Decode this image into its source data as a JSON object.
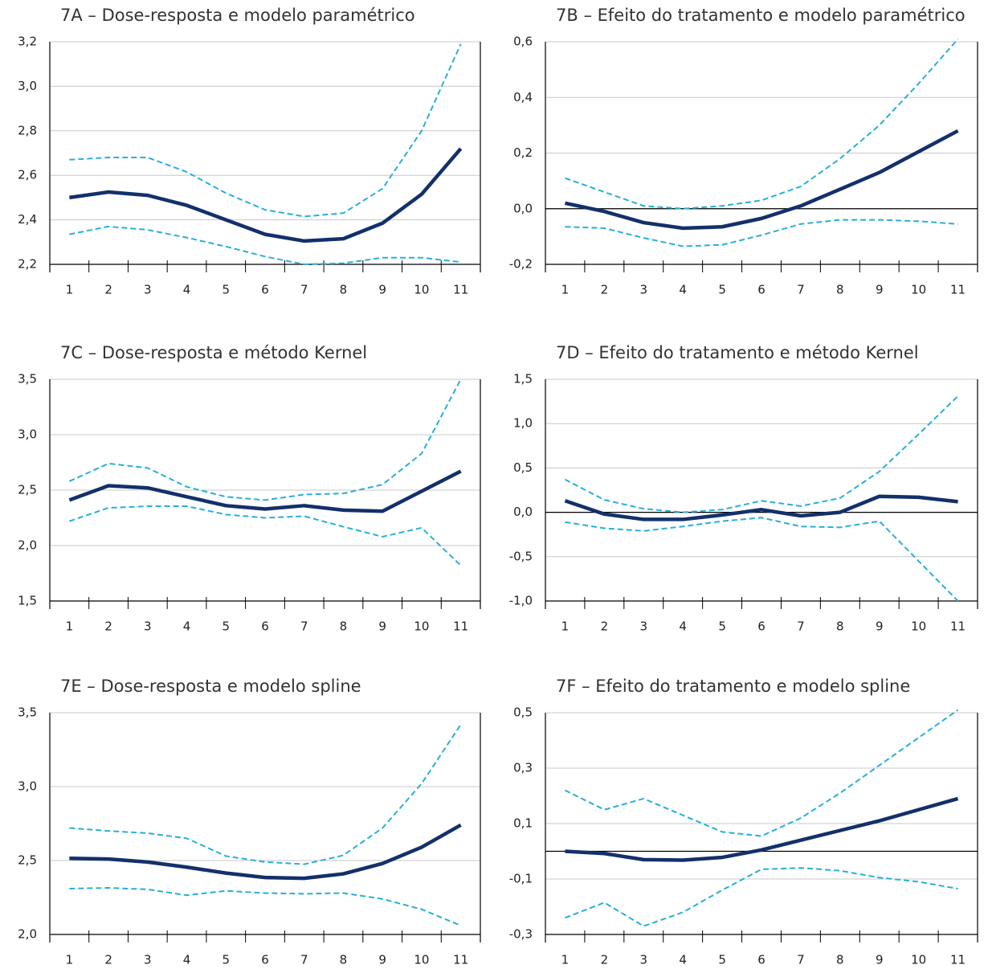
{
  "chart_data": [
    {
      "type": "line",
      "title": "7A – Dose-resposta e modelo paramétrico",
      "categories": [
        "1",
        "2",
        "3",
        "4",
        "5",
        "6",
        "7",
        "8",
        "9",
        "10",
        "11"
      ],
      "ylim": [
        2.2,
        3.2
      ],
      "yticks": [
        {
          "value": 2.2,
          "label": "2,2"
        },
        {
          "value": 2.4,
          "label": "2,4"
        },
        {
          "value": 2.6,
          "label": "2,6"
        },
        {
          "value": 2.8,
          "label": "2,8"
        },
        {
          "value": 3.0,
          "label": "3,0"
        },
        {
          "value": 3.2,
          "label": "3,2"
        }
      ],
      "grid": true,
      "zero_line": false,
      "series": [
        {
          "color": "#26b0d9",
          "style": "dashed",
          "values": [
            2.67,
            2.68,
            2.68,
            2.615,
            2.52,
            2.445,
            2.415,
            2.43,
            2.54,
            2.8,
            3.19
          ]
        },
        {
          "color": "#26b0d9",
          "style": "dashed",
          "values": [
            2.335,
            2.37,
            2.355,
            2.32,
            2.28,
            2.235,
            2.2,
            2.205,
            2.23,
            2.23,
            2.21
          ]
        },
        {
          "color": "#13306b",
          "style": "solid",
          "values": [
            2.5,
            2.525,
            2.51,
            2.465,
            2.4,
            2.335,
            2.305,
            2.315,
            2.385,
            2.515,
            2.72
          ]
        }
      ]
    },
    {
      "type": "line",
      "title": "7B – Efeito do tratamento e modelo paramétrico",
      "categories": [
        "1",
        "2",
        "3",
        "4",
        "5",
        "6",
        "7",
        "8",
        "9",
        "10",
        "11"
      ],
      "ylim": [
        -0.2,
        0.6
      ],
      "yticks": [
        {
          "value": -0.2,
          "label": "-0,2"
        },
        {
          "value": 0,
          "label": "0,0"
        },
        {
          "value": 0.2,
          "label": "0,2"
        },
        {
          "value": 0.4,
          "label": "0,4"
        },
        {
          "value": 0.6,
          "label": "0,6"
        }
      ],
      "grid": true,
      "zero_line": true,
      "series": [
        {
          "color": "#26b0d9",
          "style": "dashed",
          "values": [
            0.11,
            0.06,
            0.01,
            0.0,
            0.01,
            0.03,
            0.08,
            0.18,
            0.3,
            0.45,
            0.61
          ]
        },
        {
          "color": "#26b0d9",
          "style": "dashed",
          "values": [
            -0.065,
            -0.07,
            -0.105,
            -0.135,
            -0.13,
            -0.095,
            -0.055,
            -0.04,
            -0.04,
            -0.045,
            -0.055
          ]
        },
        {
          "color": "#13306b",
          "style": "solid",
          "values": [
            0.02,
            -0.01,
            -0.05,
            -0.07,
            -0.065,
            -0.035,
            0.01,
            0.07,
            0.13,
            0.205,
            0.28
          ]
        }
      ]
    },
    {
      "type": "line",
      "title": "7C – Dose-resposta e método Kernel",
      "categories": [
        "1",
        "2",
        "3",
        "4",
        "5",
        "6",
        "7",
        "8",
        "9",
        "10",
        "11"
      ],
      "ylim": [
        1.5,
        3.5
      ],
      "yticks": [
        {
          "value": 1.5,
          "label": "1,5"
        },
        {
          "value": 2.0,
          "label": "2,0"
        },
        {
          "value": 2.5,
          "label": "2,5"
        },
        {
          "value": 3.0,
          "label": "3,0"
        },
        {
          "value": 3.5,
          "label": "3,5"
        }
      ],
      "grid": true,
      "zero_line": false,
      "series": [
        {
          "color": "#26b0d9",
          "style": "dashed",
          "values": [
            2.58,
            2.74,
            2.7,
            2.53,
            2.44,
            2.41,
            2.46,
            2.47,
            2.55,
            2.83,
            3.5
          ]
        },
        {
          "color": "#26b0d9",
          "style": "dashed",
          "values": [
            2.22,
            2.34,
            2.355,
            2.355,
            2.28,
            2.25,
            2.265,
            2.17,
            2.08,
            2.16,
            1.82
          ]
        },
        {
          "color": "#13306b",
          "style": "solid",
          "values": [
            2.41,
            2.54,
            2.52,
            2.44,
            2.36,
            2.33,
            2.36,
            2.32,
            2.31,
            2.49,
            2.67
          ]
        }
      ]
    },
    {
      "type": "line",
      "title": "7D – Efeito do tratamento e método Kernel",
      "categories": [
        "1",
        "2",
        "3",
        "4",
        "5",
        "6",
        "7",
        "8",
        "9",
        "10",
        "11"
      ],
      "ylim": [
        -1.0,
        1.5
      ],
      "yticks": [
        {
          "value": -1.0,
          "label": "-1,0"
        },
        {
          "value": -0.5,
          "label": "-0,5"
        },
        {
          "value": 0,
          "label": "0,0"
        },
        {
          "value": 0.5,
          "label": "0,5"
        },
        {
          "value": 1.0,
          "label": "1,0"
        },
        {
          "value": 1.5,
          "label": "1,5"
        }
      ],
      "grid": true,
      "zero_line": true,
      "series": [
        {
          "color": "#26b0d9",
          "style": "dashed",
          "values": [
            0.37,
            0.14,
            0.04,
            0.0,
            0.03,
            0.13,
            0.07,
            0.16,
            0.46,
            0.88,
            1.31
          ]
        },
        {
          "color": "#26b0d9",
          "style": "dashed",
          "values": [
            -0.11,
            -0.18,
            -0.21,
            -0.16,
            -0.1,
            -0.06,
            -0.16,
            -0.17,
            -0.1,
            -0.55,
            -1.0
          ]
        },
        {
          "color": "#13306b",
          "style": "solid",
          "values": [
            0.13,
            -0.02,
            -0.08,
            -0.08,
            -0.03,
            0.03,
            -0.04,
            0.0,
            0.18,
            0.17,
            0.12
          ]
        }
      ]
    },
    {
      "type": "line",
      "title": "7E – Dose-resposta e modelo spline",
      "categories": [
        "1",
        "2",
        "3",
        "4",
        "5",
        "6",
        "7",
        "8",
        "9",
        "10",
        "11"
      ],
      "ylim": [
        2.0,
        3.5
      ],
      "yticks": [
        {
          "value": 2.0,
          "label": "2,0"
        },
        {
          "value": 2.5,
          "label": "2,5"
        },
        {
          "value": 3.0,
          "label": "3,0"
        },
        {
          "value": 3.5,
          "label": "3,5"
        }
      ],
      "grid": true,
      "zero_line": false,
      "series": [
        {
          "color": "#26b0d9",
          "style": "dashed",
          "values": [
            2.72,
            2.7,
            2.685,
            2.65,
            2.53,
            2.49,
            2.475,
            2.535,
            2.72,
            3.02,
            3.42
          ]
        },
        {
          "color": "#26b0d9",
          "style": "dashed",
          "values": [
            2.31,
            2.315,
            2.305,
            2.265,
            2.295,
            2.28,
            2.275,
            2.28,
            2.24,
            2.17,
            2.06
          ]
        },
        {
          "color": "#13306b",
          "style": "solid",
          "values": [
            2.515,
            2.51,
            2.49,
            2.455,
            2.415,
            2.385,
            2.38,
            2.41,
            2.48,
            2.59,
            2.74
          ]
        }
      ]
    },
    {
      "type": "line",
      "title": "7F – Efeito do tratamento e modelo spline",
      "categories": [
        "1",
        "2",
        "3",
        "4",
        "5",
        "6",
        "7",
        "8",
        "9",
        "10",
        "11"
      ],
      "ylim": [
        -0.3,
        0.5
      ],
      "yticks": [
        {
          "value": -0.3,
          "label": "-0,3"
        },
        {
          "value": -0.1,
          "label": "-0,1"
        },
        {
          "value": 0.1,
          "label": "0,1"
        },
        {
          "value": 0.3,
          "label": "0,3"
        },
        {
          "value": 0.5,
          "label": "0,5"
        }
      ],
      "grid": true,
      "zero_line": true,
      "series": [
        {
          "color": "#26b0d9",
          "style": "dashed",
          "values": [
            0.22,
            0.15,
            0.19,
            0.13,
            0.07,
            0.055,
            0.12,
            0.21,
            0.31,
            0.41,
            0.51
          ]
        },
        {
          "color": "#26b0d9",
          "style": "dashed",
          "values": [
            -0.24,
            -0.185,
            -0.27,
            -0.22,
            -0.14,
            -0.065,
            -0.06,
            -0.07,
            -0.095,
            -0.11,
            -0.135
          ]
        },
        {
          "color": "#13306b",
          "style": "solid",
          "values": [
            0.0,
            -0.008,
            -0.03,
            -0.032,
            -0.022,
            0.005,
            0.04,
            0.075,
            0.11,
            0.15,
            0.19
          ]
        }
      ]
    }
  ]
}
